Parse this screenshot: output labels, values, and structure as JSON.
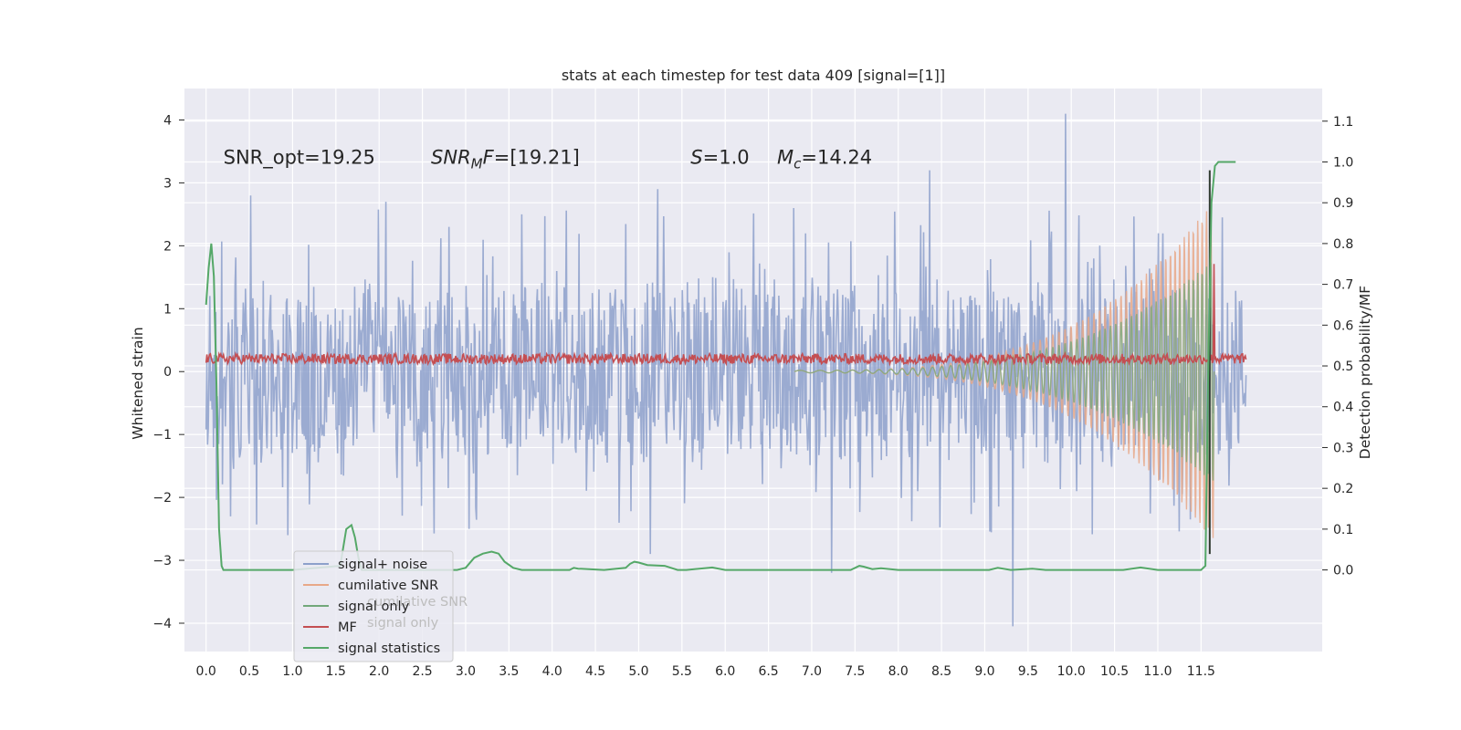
{
  "chart_data": {
    "type": "line",
    "title": "stats at each timestep for test data 409 [signal=[1]]",
    "xlabel": "",
    "ylabel": "Whitened strain",
    "y2label": "Detection probability/MF",
    "xlim": [
      -0.25,
      12.9
    ],
    "ylim": [
      -4.45,
      4.5
    ],
    "y2lim": [
      -0.2,
      1.18
    ],
    "xticks": [
      0.0,
      0.5,
      1.0,
      1.5,
      2.0,
      2.5,
      3.0,
      3.5,
      4.0,
      4.5,
      5.0,
      5.5,
      6.0,
      6.5,
      7.0,
      7.5,
      8.0,
      8.5,
      9.0,
      9.5,
      10.0,
      10.5,
      11.0,
      11.5
    ],
    "xtick_labels": [
      "0.0",
      "0.5",
      "1.0",
      "1.5",
      "2.0",
      "2.5",
      "3.0",
      "3.5",
      "4.0",
      "4.5",
      "5.0",
      "5.5",
      "6.0",
      "6.5",
      "7.0",
      "7.5",
      "8.0",
      "8.5",
      "9.0",
      "9.5",
      "10.0",
      "10.5",
      "11.0",
      "11.5"
    ],
    "yticks": [
      -4,
      -3,
      -2,
      -1,
      0,
      1,
      2,
      3,
      4
    ],
    "ytick_labels": [
      "−4",
      "−3",
      "−2",
      "−1",
      "0",
      "1",
      "2",
      "3",
      "4"
    ],
    "y2ticks": [
      0.0,
      0.1,
      0.2,
      0.3,
      0.4,
      0.5,
      0.6,
      0.7,
      0.8,
      0.9,
      1.0,
      1.1
    ],
    "y2tick_labels": [
      "0.0",
      "0.1",
      "0.2",
      "0.3",
      "0.4",
      "0.5",
      "0.6",
      "0.7",
      "0.8",
      "0.9",
      "1.0",
      "1.1"
    ],
    "annotations": [
      {
        "plain": "SNR_opt=19.25",
        "x": 0.2,
        "y": 3.3
      },
      {
        "base": "SNR",
        "sub": "M",
        "rest": "F=[19.21]",
        "x": 2.6,
        "y": 3.3
      },
      {
        "base": "S",
        "rest": "=1.0",
        "x": 5.6,
        "y": 3.3
      },
      {
        "base": "M",
        "sub": "c",
        "rest": "=14.24",
        "x": 6.6,
        "y": 3.3
      }
    ],
    "series": [
      {
        "name": "signal+ noise",
        "color": "#8da0cb",
        "axis": "left",
        "kind": "noise",
        "start": 0.0,
        "end": 12.02,
        "band": 1.3,
        "peaks_up": [
          2.8,
          2.7,
          2.5,
          2.9,
          2.6,
          3.2,
          4.1
        ],
        "peaks_down": [
          -2.6,
          -2.5,
          -2.9,
          -3.2,
          -4.05
        ]
      },
      {
        "name": "cumilative SNR",
        "color": "#e8a888",
        "axis": "left",
        "kind": "chirp-envelope",
        "start": 6.8,
        "end": 11.65,
        "peak_amplitude": 2.7
      },
      {
        "name": "signal only",
        "color": "#72a87a",
        "axis": "left",
        "kind": "chirp",
        "start": 6.8,
        "end": 11.65,
        "peak_amplitude": 3.2
      },
      {
        "name": "MF",
        "color": "#c44e52",
        "axis": "right",
        "kind": "mf",
        "start": 0.0,
        "end": 12.02,
        "baseline": 0.51,
        "spike_x": 11.65,
        "spike_y": 0.75
      },
      {
        "name": "signal statistics",
        "color": "#55a868",
        "axis": "right",
        "kind": "stat",
        "x": [
          0.0,
          0.03,
          0.06,
          0.09,
          0.12,
          0.15,
          0.18,
          0.2,
          0.25,
          1.0,
          1.55,
          1.62,
          1.68,
          1.72,
          1.76,
          1.8,
          1.85,
          2.0,
          2.9,
          3.0,
          3.1,
          3.2,
          3.3,
          3.38,
          3.45,
          3.55,
          3.65,
          3.8,
          4.2,
          4.25,
          4.3,
          4.6,
          4.85,
          4.9,
          4.95,
          5.0,
          5.1,
          5.3,
          5.45,
          5.55,
          5.85,
          6.0,
          6.5,
          7.45,
          7.55,
          7.6,
          7.7,
          7.8,
          8.0,
          9.05,
          9.15,
          9.3,
          9.55,
          9.7,
          10.6,
          10.8,
          11.0,
          11.5,
          11.55,
          11.58,
          11.62,
          11.66,
          11.7,
          11.78,
          11.9
        ],
        "y": [
          0.65,
          0.74,
          0.8,
          0.72,
          0.45,
          0.1,
          0.01,
          0.0,
          0.0,
          0.0,
          0.01,
          0.1,
          0.11,
          0.08,
          0.03,
          0.0,
          0.0,
          0.0,
          0.0,
          0.005,
          0.03,
          0.04,
          0.045,
          0.04,
          0.02,
          0.005,
          0.0,
          0.0,
          0.0,
          0.005,
          0.003,
          0.0,
          0.005,
          0.015,
          0.02,
          0.018,
          0.012,
          0.01,
          0.0,
          0.0,
          0.006,
          0.0,
          0.0,
          0.0,
          0.01,
          0.008,
          0.002,
          0.004,
          0.0,
          0.0,
          0.005,
          0.0,
          0.003,
          0.0,
          0.0,
          0.006,
          0.0,
          0.0,
          0.01,
          0.45,
          0.9,
          0.99,
          1.0,
          1.0,
          1.0
        ]
      }
    ],
    "vline_x": 11.6,
    "legend": {
      "location": "lower-left",
      "entries": [
        {
          "label": "signal+ noise",
          "color": "#8da0cb"
        },
        {
          "label": "cumilative SNR",
          "color": "#e8a888"
        },
        {
          "label": "signal only",
          "color": "#72a87a"
        },
        {
          "label": "MF",
          "color": "#c44e52"
        },
        {
          "label": "signal statistics",
          "color": "#55a868"
        }
      ],
      "ghost_entries": [
        {
          "label": "cumilative SNR"
        },
        {
          "label": "signal only"
        }
      ]
    },
    "grid": true
  }
}
